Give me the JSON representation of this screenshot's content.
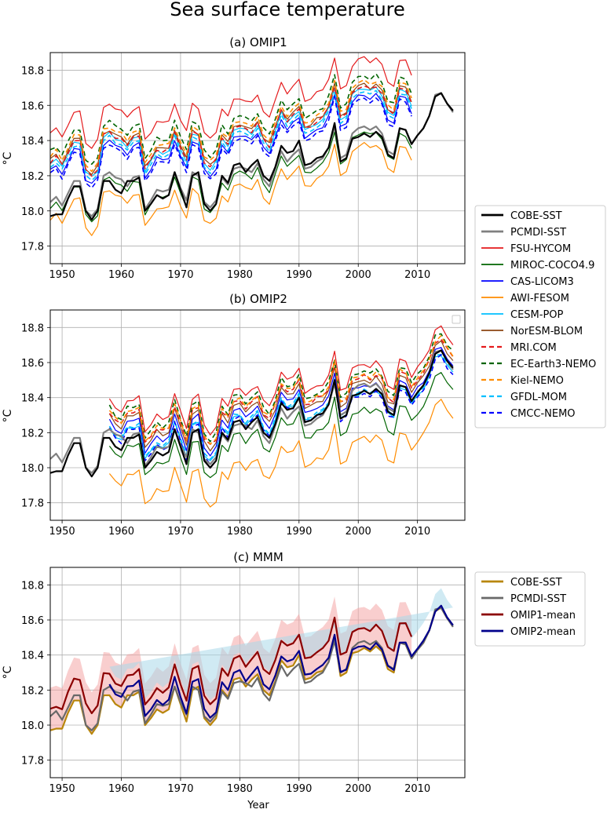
{
  "figure": {
    "title": "Sea surface temperature",
    "xlabel": "Year",
    "ylabel": "°C"
  },
  "styles": {
    "COBE-SST": {
      "color": "#000000",
      "width": 2.2,
      "dash": false
    },
    "PCMDI-SST": {
      "color": "#808080",
      "width": 2.2,
      "dash": false
    },
    "FSU-HYCOM": {
      "color": "#e41a1c",
      "width": 1.2,
      "dash": false
    },
    "MIROC-COCO4.9": {
      "color": "#006400",
      "width": 1.2,
      "dash": false
    },
    "CAS-LICOM3": {
      "color": "#0000ff",
      "width": 1.2,
      "dash": false
    },
    "AWI-FESOM": {
      "color": "#ff8c00",
      "width": 1.2,
      "dash": false
    },
    "CESM-POP": {
      "color": "#00bfff",
      "width": 1.2,
      "dash": false
    },
    "NorESM-BLOM": {
      "color": "#8b4513",
      "width": 1.2,
      "dash": false
    },
    "MRI.COM": {
      "color": "#e41a1c",
      "width": 1.6,
      "dash": true
    },
    "EC-Earth3-NEMO": {
      "color": "#006400",
      "width": 1.6,
      "dash": true
    },
    "Kiel-NEMO": {
      "color": "#ff8c00",
      "width": 1.6,
      "dash": true
    },
    "GFDL-MOM": {
      "color": "#00bfff",
      "width": 1.6,
      "dash": true
    },
    "CMCC-NEMO": {
      "color": "#0000ff",
      "width": 1.6,
      "dash": true
    },
    "MMM-COBE-SST": {
      "color": "#b8860b",
      "width": 2.2,
      "dash": false
    },
    "MMM-PCMDI-SST": {
      "color": "#696969",
      "width": 2.2,
      "dash": false
    },
    "OMIP1-mean": {
      "color": "#8b0000",
      "width": 2.2,
      "dash": false
    },
    "OMIP2-mean": {
      "color": "#00008b",
      "width": 2.2,
      "dash": false
    },
    "band1": "#f4a6a6",
    "band2": "#a9d8ea"
  },
  "legend_top": [
    "COBE-SST",
    "PCMDI-SST",
    "FSU-HYCOM",
    "MIROC-COCO4.9",
    "CAS-LICOM3",
    "AWI-FESOM",
    "CESM-POP",
    "NorESM-BLOM",
    "MRI.COM",
    "EC-Earth3-NEMO",
    "Kiel-NEMO",
    "GFDL-MOM",
    "CMCC-NEMO"
  ],
  "legend_bottom": [
    {
      "label": "COBE-SST",
      "style": "MMM-COBE-SST"
    },
    {
      "label": "PCMDI-SST",
      "style": "MMM-PCMDI-SST"
    },
    {
      "label": "OMIP1-mean",
      "style": "OMIP1-mean"
    },
    {
      "label": "OMIP2-mean",
      "style": "OMIP2-mean"
    }
  ],
  "chart_data": [
    {
      "type": "line",
      "title": "(a) OMIP1",
      "ylabel": "°C",
      "xlim": [
        1948,
        2018
      ],
      "ylim": [
        17.7,
        18.9
      ],
      "xticks": [
        1950,
        1960,
        1970,
        1980,
        1990,
        2000,
        2010
      ],
      "yticks": [
        17.8,
        18.0,
        18.2,
        18.4,
        18.6,
        18.8
      ],
      "grid": true,
      "observations": {
        "start": 1948,
        "COBE": "COBE-SST",
        "PCMDI": "PCMDI-SST"
      },
      "model_base": {
        "start": 1948,
        "end": 2009,
        "base": "PCMDI-SST",
        "anchor": 0.6,
        "bias_early": 0.12,
        "bias_late": 0.12
      },
      "series": [
        {
          "name": "FSU-HYCOM",
          "offset": 0.27
        },
        {
          "name": "MIROC-COCO4.9",
          "offset": -0.13
        },
        {
          "name": "CAS-LICOM3",
          "offset": 0.06
        },
        {
          "name": "AWI-FESOM",
          "offset": -0.2
        },
        {
          "name": "CESM-POP",
          "offset": 0.1
        },
        {
          "name": "NorESM-BLOM",
          "offset": 0.12
        },
        {
          "name": "MRI.COM",
          "offset": 0.11
        },
        {
          "name": "EC-Earth3-NEMO",
          "offset": 0.17
        },
        {
          "name": "Kiel-NEMO",
          "offset": 0.14
        },
        {
          "name": "GFDL-MOM",
          "offset": 0.08
        },
        {
          "name": "CMCC-NEMO",
          "offset": 0.04
        }
      ]
    },
    {
      "type": "line",
      "title": "(b) OMIP2",
      "ylabel": "°C",
      "xlim": [
        1948,
        2018
      ],
      "ylim": [
        17.7,
        18.9
      ],
      "xticks": [
        1950,
        1960,
        1970,
        1980,
        1990,
        2000,
        2010
      ],
      "yticks": [
        17.8,
        18.0,
        18.2,
        18.4,
        18.6,
        18.8
      ],
      "grid": true,
      "observations": {
        "start": 1948,
        "COBE": "COBE-SST",
        "PCMDI": "PCMDI-SST"
      },
      "model_base": {
        "start": 1958,
        "end": 2018,
        "base": "COBE-SST",
        "anchor": 0.4,
        "bias_early": 0.1,
        "bias_late": 0.01
      },
      "series": [
        {
          "name": "FSU-HYCOM",
          "offset": 0.12
        },
        {
          "name": "MIROC-COCO4.9",
          "offset": -0.12
        },
        {
          "name": "CAS-LICOM3",
          "offset": 0.0
        },
        {
          "name": "AWI-FESOM",
          "offset": -0.28
        },
        {
          "name": "CESM-POP",
          "offset": -0.02
        },
        {
          "name": "NorESM-BLOM",
          "offset": 0.03
        },
        {
          "name": "MRI.COM",
          "offset": 0.05
        },
        {
          "name": "EC-Earth3-NEMO",
          "offset": 0.08
        },
        {
          "name": "Kiel-NEMO",
          "offset": 0.06
        },
        {
          "name": "GFDL-MOM",
          "offset": -0.01
        },
        {
          "name": "CMCC-NEMO",
          "offset": -0.03
        }
      ]
    },
    {
      "type": "line",
      "title": "(c) MMM",
      "ylabel": "°C",
      "xlabel": "Year",
      "xlim": [
        1948,
        2018
      ],
      "ylim": [
        17.7,
        18.9
      ],
      "xticks": [
        1950,
        1960,
        1970,
        1980,
        1990,
        2000,
        2010
      ],
      "yticks": [
        17.8,
        18.0,
        18.2,
        18.4,
        18.6,
        18.8
      ],
      "grid": true,
      "mmm": {
        "omip1": {
          "start": 1948,
          "end": 2009,
          "bias": 0.12,
          "spread": 0.12
        },
        "omip2": {
          "start": 1958,
          "end": 2018,
          "bias": 0.06,
          "bias_late": 0.0,
          "spread": 0.1
        }
      },
      "series": [
        {
          "name": "COBE-SST",
          "style": "MMM-COBE-SST"
        },
        {
          "name": "PCMDI-SST",
          "style": "MMM-PCMDI-SST"
        },
        {
          "name": "OMIP1-mean",
          "style": "OMIP1-mean"
        },
        {
          "name": "OMIP2-mean",
          "style": "OMIP2-mean"
        }
      ]
    }
  ],
  "obs_data": {
    "COBE-SST": [
      17.97,
      17.98,
      17.98,
      18.07,
      18.14,
      18.14,
      18.0,
      17.95,
      18.0,
      18.17,
      18.17,
      18.12,
      18.1,
      18.17,
      18.17,
      18.19,
      18.0,
      18.04,
      18.09,
      18.07,
      18.09,
      18.22,
      18.12,
      18.02,
      18.2,
      18.22,
      18.04,
      18.0,
      18.04,
      18.2,
      18.16,
      18.26,
      18.27,
      18.22,
      18.26,
      18.29,
      18.2,
      18.17,
      18.25,
      18.37,
      18.33,
      18.34,
      18.4,
      18.26,
      18.27,
      18.3,
      18.31,
      18.36,
      18.5,
      18.28,
      18.3,
      18.41,
      18.42,
      18.44,
      18.42,
      18.45,
      18.42,
      18.32,
      18.3,
      18.47,
      18.46,
      18.38,
      18.43,
      18.47,
      18.54,
      18.65,
      18.67,
      18.61,
      18.57
    ],
    "PCMDI-SST": [
      18.05,
      18.08,
      18.03,
      18.1,
      18.17,
      18.17,
      18.0,
      17.97,
      18.01,
      18.2,
      18.22,
      18.19,
      18.18,
      18.14,
      18.19,
      18.2,
      18.01,
      18.06,
      18.12,
      18.11,
      18.12,
      18.22,
      18.13,
      18.06,
      18.22,
      18.2,
      18.05,
      18.02,
      18.06,
      18.19,
      18.15,
      18.24,
      18.25,
      18.24,
      18.22,
      18.27,
      18.18,
      18.14,
      18.24,
      18.34,
      18.28,
      18.32,
      18.35,
      18.24,
      18.25,
      18.28,
      18.3,
      18.36,
      18.48,
      18.3,
      18.32,
      18.44,
      18.47,
      18.48,
      18.46,
      18.48,
      18.44,
      18.34,
      18.32,
      18.47,
      18.46,
      18.38,
      18.43,
      18.47,
      18.54,
      18.66,
      18.67,
      18.61,
      18.56
    ]
  }
}
